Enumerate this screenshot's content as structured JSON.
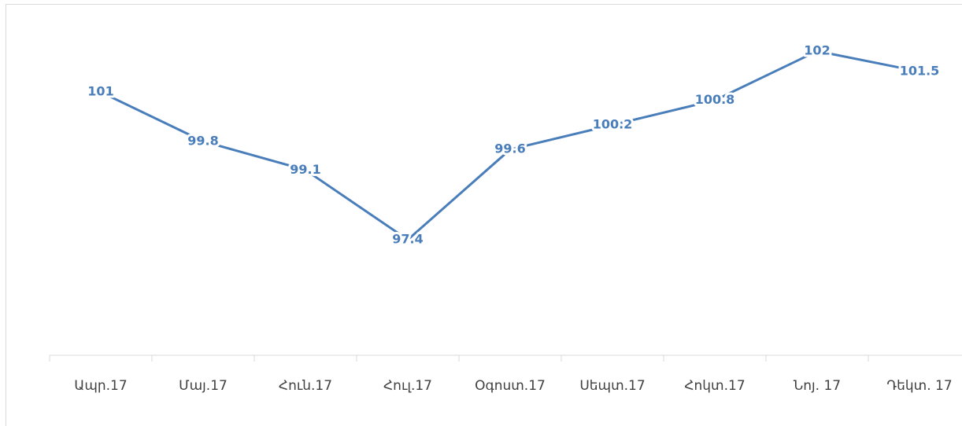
{
  "chart_data": {
    "type": "line",
    "categories": [
      "Ապր.17",
      "Մայ.17",
      "Հուն.17",
      "Հուլ.17",
      "Օգոստ.17",
      "Սեպտ.17",
      "Հոկտ.17",
      "Նոյ. 17",
      "Դեկտ. 17"
    ],
    "values": [
      101,
      99.8,
      99.1,
      97.4,
      99.6,
      100.2,
      100.8,
      102,
      101.5
    ],
    "color": "#4a7ebb"
  }
}
